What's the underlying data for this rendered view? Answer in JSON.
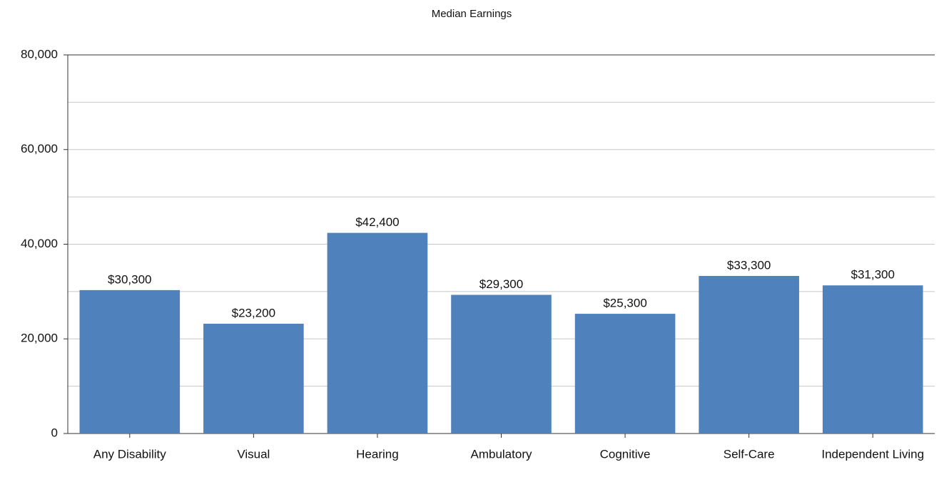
{
  "chart_data": {
    "type": "bar",
    "title": "Median Earnings",
    "categories": [
      "Any Disability",
      "Visual",
      "Hearing",
      "Ambulatory",
      "Cognitive",
      "Self-Care",
      "Independent Living"
    ],
    "values": [
      30300,
      23200,
      42400,
      29300,
      25300,
      33300,
      31300
    ],
    "value_labels": [
      "$30,300",
      "$23,200",
      "$42,400",
      "$29,300",
      "$25,300",
      "$33,300",
      "$31,300"
    ],
    "color": "#4f81bd",
    "ylim": [
      0,
      80000
    ],
    "yticks": [
      0,
      {
        "value": 20000,
        "label": "20,000"
      },
      {
        "value": 40000,
        "label": "40,000"
      },
      {
        "value": 60000,
        "label": "60,000"
      },
      {
        "value": 80000,
        "label": "80,000"
      }
    ],
    "y_minor_ticks": [
      10000,
      30000,
      50000,
      70000
    ],
    "grid": true
  }
}
